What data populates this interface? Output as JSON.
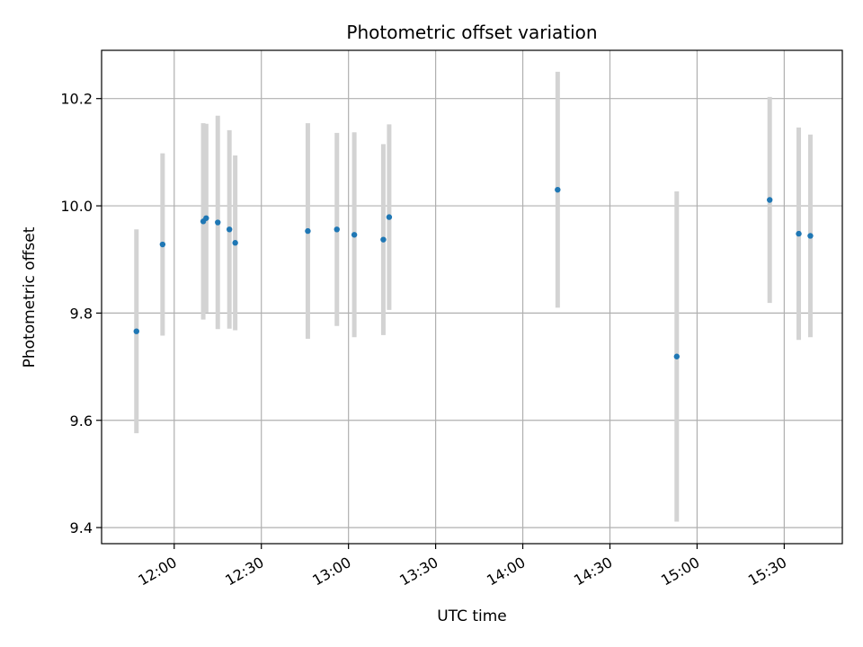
{
  "chart_data": {
    "type": "scatter",
    "title": "Photometric offset variation",
    "xlabel": "UTC time",
    "ylabel": "Photometric offset",
    "x_axis_kind": "time",
    "xlim": [
      "11:35",
      "15:50"
    ],
    "ylim": [
      9.37,
      10.29
    ],
    "grid": true,
    "xticks": [
      "12:00",
      "12:30",
      "13:00",
      "13:30",
      "14:00",
      "14:30",
      "15:00",
      "15:30"
    ],
    "yticks": [
      9.4,
      9.6,
      9.8,
      10.0,
      10.2
    ],
    "ytick_labels": [
      "9.4",
      "9.6",
      "9.8",
      "10.0",
      "10.2"
    ],
    "colors": {
      "point": "#1f77b4",
      "errorbar": "#d3d3d3",
      "grid": "#b0b0b0"
    },
    "points": [
      {
        "x": "11:47",
        "y": 9.766,
        "err": 0.19
      },
      {
        "x": "11:56",
        "y": 9.928,
        "err": 0.17
      },
      {
        "x": "12:10",
        "y": 9.971,
        "err": 0.183
      },
      {
        "x": "12:11",
        "y": 9.977,
        "err": 0.176
      },
      {
        "x": "12:15",
        "y": 9.969,
        "err": 0.199
      },
      {
        "x": "12:19",
        "y": 9.956,
        "err": 0.185
      },
      {
        "x": "12:21",
        "y": 9.931,
        "err": 0.163
      },
      {
        "x": "12:46",
        "y": 9.953,
        "err": 0.201
      },
      {
        "x": "12:56",
        "y": 9.956,
        "err": 0.18
      },
      {
        "x": "13:02",
        "y": 9.946,
        "err": 0.191
      },
      {
        "x": "13:12",
        "y": 9.937,
        "err": 0.178
      },
      {
        "x": "13:14",
        "y": 9.979,
        "err": 0.173
      },
      {
        "x": "14:12",
        "y": 10.03,
        "err": 0.22
      },
      {
        "x": "14:53",
        "y": 9.719,
        "err": 0.308
      },
      {
        "x": "15:25",
        "y": 10.011,
        "err": 0.192
      },
      {
        "x": "15:35",
        "y": 9.948,
        "err": 0.198
      },
      {
        "x": "15:39",
        "y": 9.944,
        "err": 0.189
      }
    ]
  }
}
